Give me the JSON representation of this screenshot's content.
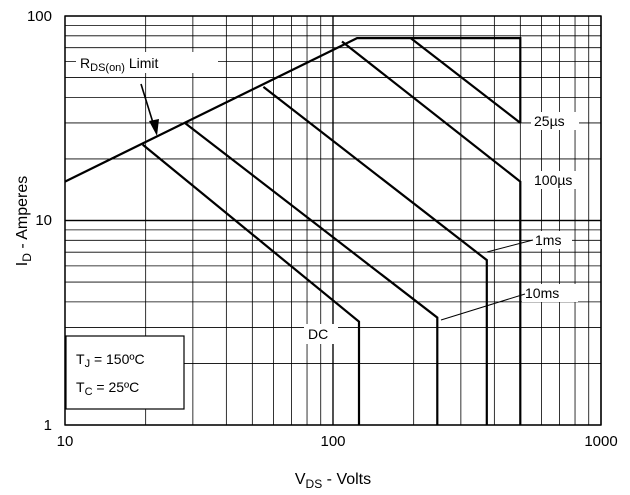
{
  "chart_data": {
    "type": "line",
    "scale": "log-log",
    "grid": true,
    "xlim": [
      10,
      1000
    ],
    "ylim": [
      1,
      100
    ],
    "xticks": [
      "10",
      "100",
      "1000"
    ],
    "yticks": [
      "1",
      "10",
      "100"
    ],
    "xlabel": {
      "main": "V",
      "sub": "DS",
      "rest": " - Volts"
    },
    "ylabel": {
      "main": "I",
      "sub": "D",
      "rest": " - Amperes"
    },
    "limit_label": {
      "main": "R",
      "sub": "DS(on)",
      "rest": " Limit"
    },
    "series": [
      {
        "name": "25µs",
        "points": [
          [
            10,
            15.5
          ],
          [
            123,
            78
          ],
          [
            500,
            78
          ],
          [
            500,
            30
          ]
        ]
      },
      {
        "name": "100µs",
        "points": [
          [
            108,
            75
          ],
          [
            500,
            15.5
          ],
          [
            500,
            1
          ]
        ]
      },
      {
        "name": "1ms",
        "points": [
          [
            55,
            45
          ],
          [
            375,
            6.4
          ],
          [
            375,
            1
          ]
        ]
      },
      {
        "name": "10ms",
        "points": [
          [
            28,
            30
          ],
          [
            245,
            3.35
          ],
          [
            245,
            1
          ]
        ]
      },
      {
        "name": "DC",
        "points": [
          [
            19.5,
            23.5
          ],
          [
            125,
            3.2
          ],
          [
            125,
            1
          ]
        ]
      },
      {
        "name": "",
        "points": [
          [
            195,
            78
          ],
          [
            500,
            30
          ]
        ]
      }
    ],
    "conditions": {
      "tj": {
        "main": "T",
        "sub": "J",
        "rest": " = 150ºC"
      },
      "tc": {
        "main": "T",
        "sub": "C",
        "rest": " = 25ºC"
      }
    }
  }
}
